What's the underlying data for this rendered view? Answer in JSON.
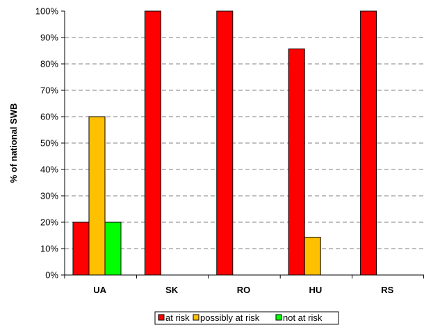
{
  "chart_data": {
    "type": "bar",
    "categories": [
      "UA",
      "SK",
      "RO",
      "HU",
      "RS"
    ],
    "series": [
      {
        "name": "at risk",
        "color": "#ff0000",
        "values": [
          20,
          100,
          100,
          85.7,
          100
        ]
      },
      {
        "name": "possibly at risk",
        "color": "#ffc000",
        "values": [
          60,
          0,
          0,
          14.3,
          0
        ]
      },
      {
        "name": "not at risk",
        "color": "#00ff00",
        "values": [
          20,
          0,
          0,
          0,
          0
        ]
      }
    ],
    "title": "",
    "xlabel": "",
    "ylabel": "% of national SWB",
    "ylim": [
      0,
      100
    ],
    "y_ticks": [
      "0%",
      "10%",
      "20%",
      "30%",
      "40%",
      "50%",
      "60%",
      "70%",
      "80%",
      "90%",
      "100%"
    ],
    "grid": "horizontal dashed",
    "legend_position": "bottom"
  }
}
